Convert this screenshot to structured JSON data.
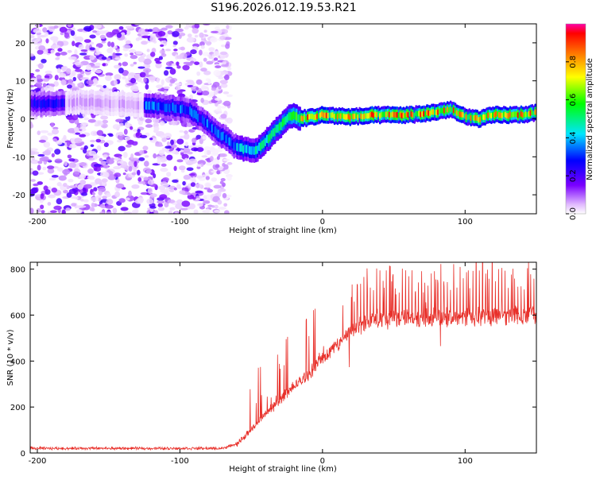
{
  "title": "S196.2026.012.19.53.R21",
  "colors": {
    "snr_line": "#e8302a",
    "axis": "#000000",
    "background": "#ffffff"
  },
  "chart_data": [
    {
      "type": "heatmap",
      "name": "spectrogram",
      "xlabel": "Height of straight line (km)",
      "ylabel": "Frequency (Hz)",
      "xlim": [
        -205,
        150
      ],
      "ylim": [
        -25,
        25
      ],
      "xticks": [
        {
          "v": -200,
          "label": "-200"
        },
        {
          "v": -100,
          "label": "-100"
        },
        {
          "v": 0,
          "label": "0"
        },
        {
          "v": 100,
          "label": "100"
        }
      ],
      "yticks": [
        {
          "v": 20,
          "label": "20"
        },
        {
          "v": 10,
          "label": "10"
        },
        {
          "v": 0,
          "label": "0"
        },
        {
          "v": -10,
          "label": "-10"
        },
        {
          "v": -20,
          "label": "-20"
        }
      ],
      "colorbar": {
        "label": "Normalized spectral amplitude",
        "range": [
          0,
          1
        ],
        "ticks": [
          {
            "v": 0.0,
            "label": "0.0"
          },
          {
            "v": 0.2,
            "label": "0.2"
          },
          {
            "v": 0.4,
            "label": "0.4"
          },
          {
            "v": 0.6,
            "label": "0.6"
          },
          {
            "v": 0.8,
            "label": "0.8"
          }
        ]
      },
      "noise_region_x": [
        -205,
        -65
      ],
      "signal_ridge": [
        [
          -205,
          4
        ],
        [
          -185,
          4
        ],
        [
          -170,
          4.5
        ],
        [
          -120,
          3.5
        ],
        [
          -95,
          2.5
        ],
        [
          -82,
          -1
        ],
        [
          -72,
          -4
        ],
        [
          -62,
          -7
        ],
        [
          -55,
          -8
        ],
        [
          -47,
          -8.5
        ],
        [
          -40,
          -6
        ],
        [
          -30,
          -2
        ],
        [
          -22,
          1
        ],
        [
          -15,
          0
        ],
        [
          0,
          1
        ],
        [
          20,
          0.5
        ],
        [
          40,
          1
        ],
        [
          60,
          1
        ],
        [
          75,
          1.5
        ],
        [
          90,
          2.5
        ],
        [
          100,
          0.5
        ],
        [
          110,
          0
        ],
        [
          120,
          1
        ],
        [
          135,
          1
        ],
        [
          150,
          1.5
        ]
      ]
    },
    {
      "type": "line",
      "name": "snr",
      "xlabel": "Height of straight line (km)",
      "ylabel": "SNR (10 * v/v)",
      "xlim": [
        -205,
        150
      ],
      "ylim": [
        0,
        830
      ],
      "xticks": [
        {
          "v": -200,
          "label": "-200"
        },
        {
          "v": -100,
          "label": "-100"
        },
        {
          "v": 0,
          "label": "0"
        },
        {
          "v": 100,
          "label": "100"
        }
      ],
      "yticks": [
        {
          "v": 0,
          "label": "0"
        },
        {
          "v": 200,
          "label": "200"
        },
        {
          "v": 400,
          "label": "400"
        },
        {
          "v": 600,
          "label": "600"
        },
        {
          "v": 800,
          "label": "800"
        }
      ],
      "series": [
        {
          "name": "SNR",
          "envelope": [
            [
              -205,
              20
            ],
            [
              -70,
              20
            ],
            [
              -60,
              40
            ],
            [
              -50,
              100
            ],
            [
              -40,
              170
            ],
            [
              -30,
              230
            ],
            [
              -20,
              290
            ],
            [
              -10,
              340
            ],
            [
              0,
              410
            ],
            [
              10,
              470
            ],
            [
              20,
              530
            ],
            [
              30,
              565
            ],
            [
              40,
              580
            ],
            [
              60,
              585
            ],
            [
              80,
              590
            ],
            [
              100,
              595
            ],
            [
              120,
              595
            ],
            [
              150,
              600
            ]
          ]
        }
      ]
    }
  ]
}
